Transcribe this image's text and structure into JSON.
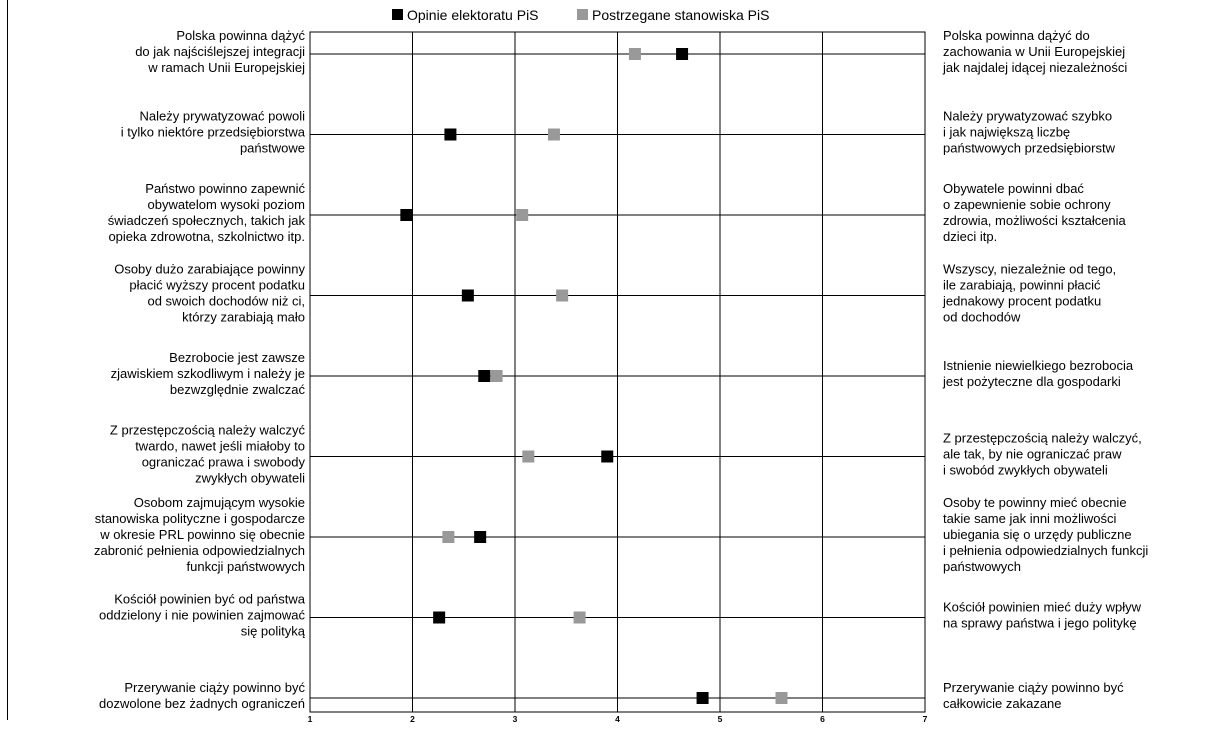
{
  "chart_data": {
    "type": "scatter",
    "xlim": [
      1,
      7
    ],
    "x_ticks": [
      "1",
      "2",
      "3",
      "4",
      "5",
      "6",
      "7"
    ],
    "grid": true,
    "legend_position": "top",
    "series": [
      {
        "name": "Opinie elektoratu PiS",
        "color": "#000000",
        "values": [
          4.63,
          2.37,
          1.94,
          2.54,
          2.7,
          3.9,
          2.66,
          2.26,
          4.83
        ]
      },
      {
        "name": "Postrzegane stanowiska PiS",
        "color": "#999999",
        "values": [
          4.17,
          3.38,
          3.07,
          3.46,
          2.82,
          3.13,
          2.35,
          3.63,
          5.6
        ]
      }
    ],
    "items": [
      {
        "left": [
          "Polska powinna dążyć",
          "do jak najściślejszej integracji",
          "w ramach Unii Europejskiej"
        ],
        "right": [
          "Polska powinna dążyć do",
          "zachowania w Unii Europejskiej",
          "jak najdalej idącej niezależności"
        ]
      },
      {
        "left": [
          "Należy prywatyzować powoli",
          "i tylko niektóre przedsiębiorstwa",
          "państwowe"
        ],
        "right": [
          "Należy prywatyzować szybko",
          "i jak największą liczbę",
          "państwowych przedsiębiorstw"
        ]
      },
      {
        "left": [
          "Państwo powinno zapewnić",
          "obywatelom wysoki poziom",
          "świadczeń społecznych, takich jak",
          "opieka zdrowotna, szkolnictwo itp."
        ],
        "right": [
          "Obywatele powinni dbać",
          "o zapewnienie sobie ochrony",
          "zdrowia, możliwości kształcenia",
          "dzieci itp."
        ]
      },
      {
        "left": [
          "Osoby dużo zarabiające powinny",
          "płacić wyższy procent podatku",
          "od swoich dochodów niż ci,",
          "którzy zarabiają mało"
        ],
        "right": [
          "Wszyscy, niezależnie od tego,",
          "ile zarabiają, powinni płacić",
          "jednakowy procent podatku",
          "od dochodów"
        ]
      },
      {
        "left": [
          "Bezrobocie jest zawsze",
          "zjawiskiem szkodliwym i należy je",
          "bezwzględnie zwalczać"
        ],
        "right": [
          "Istnienie niewielkiego bezrobocia",
          "jest pożyteczne dla gospodarki"
        ]
      },
      {
        "left": [
          "Z przestępczością należy walczyć",
          "twardo, nawet jeśli miałoby to",
          "ograniczać prawa i swobody",
          "zwykłych obywateli"
        ],
        "right": [
          "Z przestępczością należy walczyć,",
          "ale tak, by nie ograniczać praw",
          "i swobód zwykłych obywateli"
        ]
      },
      {
        "left": [
          "Osobom zajmującym wysokie",
          "stanowiska polityczne i gospodarcze",
          "w okresie PRL powinno się obecnie",
          "zabronić pełnienia odpowiedzialnych",
          "funkcji państwowych"
        ],
        "right": [
          "Osoby te powinny mieć obecnie",
          "takie same jak inni możliwości",
          "ubiegania się o urzędy publiczne",
          "i pełnienia odpowiedzialnych funkcji",
          "państwowych"
        ]
      },
      {
        "left": [
          "Kościół powinien być od państwa",
          "oddzielony i nie powinien zajmować",
          "się polityką"
        ],
        "right": [
          "Kościół powinien mieć duży wpływ",
          "na sprawy państwa i jego politykę"
        ]
      },
      {
        "left": [
          "Przerywanie ciąży powinno być",
          "dozwolone bez żadnych ograniczeń"
        ],
        "right": [
          "Przerywanie ciąży powinno być",
          "całkowicie zakazane"
        ]
      }
    ]
  }
}
